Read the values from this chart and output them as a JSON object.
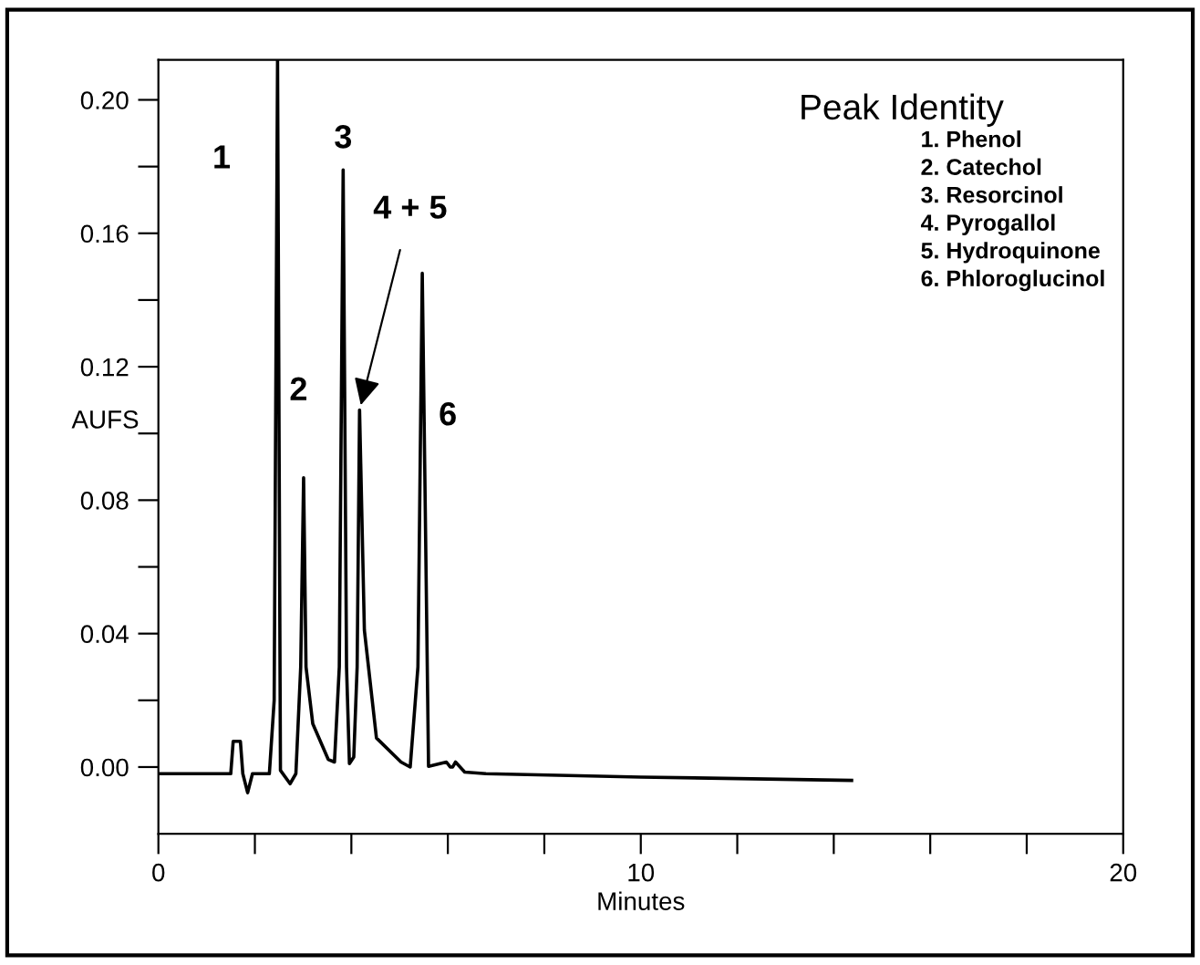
{
  "chart_data": {
    "type": "line",
    "xlabel": "Minutes",
    "ylabel": "AUFS",
    "series": [
      {
        "color": "#000000",
        "x": [
          0,
          1.5,
          1.55,
          1.7,
          1.75,
          1.85,
          1.95,
          2.3,
          2.4,
          2.47,
          2.53,
          2.73,
          2.85,
          2.95,
          3.01,
          3.06,
          3.2,
          3.52,
          3.65,
          3.75,
          3.83,
          3.9,
          3.96,
          4.05,
          4.12,
          4.17,
          4.27,
          4.52,
          5.03,
          5.22,
          5.38,
          5.47,
          5.6,
          5.97,
          6.05,
          6.1,
          6.16,
          6.35,
          6.79,
          10,
          14.37
        ],
        "values": [
          -0.002,
          -0.002,
          0.0077,
          0.0077,
          -0.002,
          -0.0077,
          -0.002,
          -0.002,
          0.02,
          0.212,
          -0.001,
          -0.005,
          -0.002,
          0.03,
          0.0867,
          0.03,
          0.013,
          0.0023,
          0.0015,
          0.03,
          0.179,
          0.03,
          0.001,
          0.003,
          0.03,
          0.107,
          0.041,
          0.0087,
          0.0015,
          0.0,
          0.03,
          0.148,
          0.0002,
          0.0015,
          0.0,
          0.0,
          0.0015,
          -0.0015,
          -0.002,
          -0.003,
          -0.004
        ]
      }
    ],
    "xlim": [
      0,
      20
    ],
    "ylim": [
      -0.02,
      0.212
    ],
    "xticks": [
      0,
      {
        "value": 2,
        "label": null
      },
      {
        "value": 4,
        "label": null
      },
      {
        "value": 6,
        "label": null
      },
      {
        "value": 8,
        "label": null
      },
      10,
      {
        "value": 12,
        "label": null
      },
      {
        "value": 14,
        "label": null
      },
      {
        "value": 16,
        "label": null
      },
      {
        "value": 18,
        "label": null
      },
      20
    ],
    "yticks": [
      {
        "value": 0.0,
        "label": "0.00"
      },
      {
        "value": 0.02,
        "label": null
      },
      {
        "value": 0.04,
        "label": "0.04"
      },
      {
        "value": 0.06,
        "label": null
      },
      {
        "value": 0.08,
        "label": "0.08"
      },
      {
        "value": 0.1,
        "label": null
      },
      {
        "value": 0.12,
        "label": "0.12"
      },
      {
        "value": 0.14,
        "label": null
      },
      {
        "value": 0.16,
        "label": "0.16"
      },
      {
        "value": 0.18,
        "label": null
      },
      {
        "value": 0.2,
        "label": "0.20"
      }
    ],
    "grid": false,
    "marker": "none",
    "line_style": "solid",
    "annotations": [
      "1",
      {
        "text": "2",
        "x": 3.01,
        "y": 0.0867
      },
      {
        "text": "3",
        "x": 3.83,
        "y": 0.179
      },
      {
        "text": "4 + 5",
        "x": 4.17,
        "y": 0.107
      },
      "6",
      "Peak Identity",
      "1. Phenol",
      "2. Catechol",
      "3. Resorcinol",
      "4. Pyrogallol",
      "5. Hydroquinone",
      "6. Phloroglucinol"
    ]
  }
}
